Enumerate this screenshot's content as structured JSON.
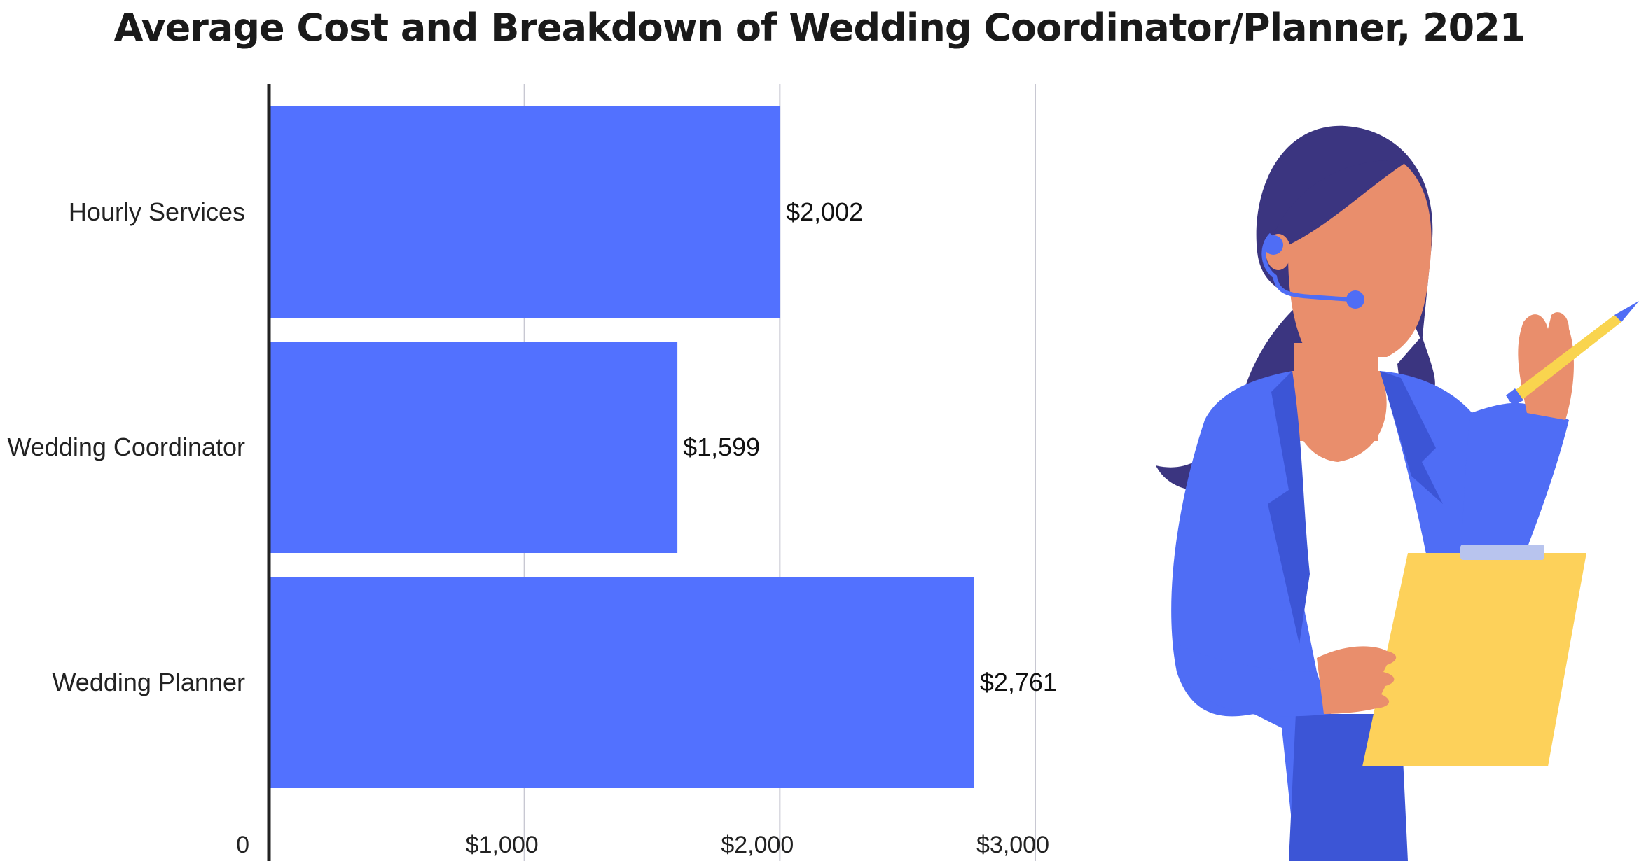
{
  "chart_data": {
    "type": "bar",
    "orientation": "horizontal",
    "title": "Average Cost and Breakdown of Wedding Coordinator/Planner, 2021",
    "categories": [
      "Hourly Services",
      "Wedding Coordinator",
      "Wedding Planner"
    ],
    "values": [
      2002,
      1599,
      2761
    ],
    "value_labels": [
      "$2,002",
      "$1,599",
      "$2,761"
    ],
    "xlim": [
      0,
      3000
    ],
    "x_ticks": [
      0,
      1000,
      2000,
      3000
    ],
    "x_tick_labels": [
      "0",
      "$1,000",
      "$2,000",
      "$3,000"
    ],
    "grid": true,
    "bar_color": "#5271ff",
    "xlabel": "",
    "ylabel": ""
  },
  "illustration": {
    "subject": "woman-with-headset-and-clipboard",
    "colors": {
      "hair": "#3b3580",
      "skin": "#e98e6c",
      "jacket": "#4f6df5",
      "jacket_shadow": "#3c55d6",
      "shirt": "#ffffff",
      "clipboard": "#fdd15a",
      "pen": "#f9d44e"
    }
  }
}
